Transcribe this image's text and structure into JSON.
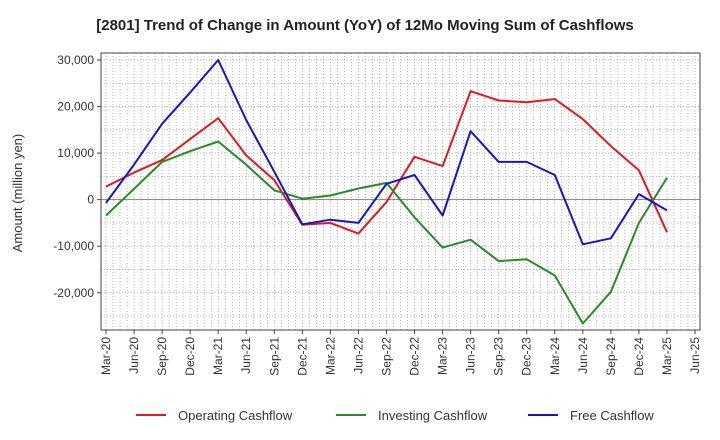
{
  "chart_data": {
    "type": "line",
    "title": "[2801]  Trend of Change in Amount (YoY) of 12Mo Moving Sum of Cashflows",
    "xlabel": "",
    "ylabel": "Amount (million yen)",
    "ylim": [
      -28000,
      31500
    ],
    "yticks": [
      30000,
      20000,
      10000,
      0,
      -10000,
      -20000
    ],
    "ytick_labels": [
      "30,000",
      "20,000",
      "10,000",
      "0",
      "-10,000",
      "-20,000"
    ],
    "categories": [
      "Mar-20",
      "Jun-20",
      "Sep-20",
      "Dec-20",
      "Mar-21",
      "Jun-21",
      "Sep-21",
      "Dec-21",
      "Mar-22",
      "Jun-22",
      "Sep-22",
      "Dec-22",
      "Mar-23",
      "Jun-23",
      "Sep-23",
      "Dec-23",
      "Mar-24",
      "Jun-24",
      "Sep-24",
      "Dec-24",
      "Mar-25",
      "Jun-25"
    ],
    "grid": true,
    "legend_position": "bottom",
    "series": [
      {
        "name": "Operating Cashflow",
        "color": "#e31a1c",
        "values": [
          2800,
          5800,
          8500,
          13000,
          17500,
          9500,
          4200,
          -5400,
          -5000,
          -7300,
          -500,
          9200,
          7200,
          23300,
          21300,
          20900,
          21600,
          17300,
          11500,
          6300,
          -7000,
          null
        ]
      },
      {
        "name": "Investing Cashflow",
        "color": "#2a8a2a",
        "values": [
          -3400,
          2300,
          8100,
          10400,
          12500,
          7500,
          2000,
          200,
          900,
          2400,
          3600,
          -3800,
          -10300,
          -8600,
          -13200,
          -12800,
          -16300,
          -26600,
          -19800,
          -5000,
          4700,
          null
        ]
      },
      {
        "name": "Free Cashflow",
        "color": "#1414d2",
        "values": [
          -700,
          7500,
          16300,
          23000,
          30000,
          17100,
          6000,
          -5300,
          -4300,
          -5000,
          3400,
          5300,
          -3400,
          14700,
          8100,
          8100,
          5300,
          -9600,
          -8300,
          1200,
          -2300,
          null
        ]
      }
    ]
  }
}
